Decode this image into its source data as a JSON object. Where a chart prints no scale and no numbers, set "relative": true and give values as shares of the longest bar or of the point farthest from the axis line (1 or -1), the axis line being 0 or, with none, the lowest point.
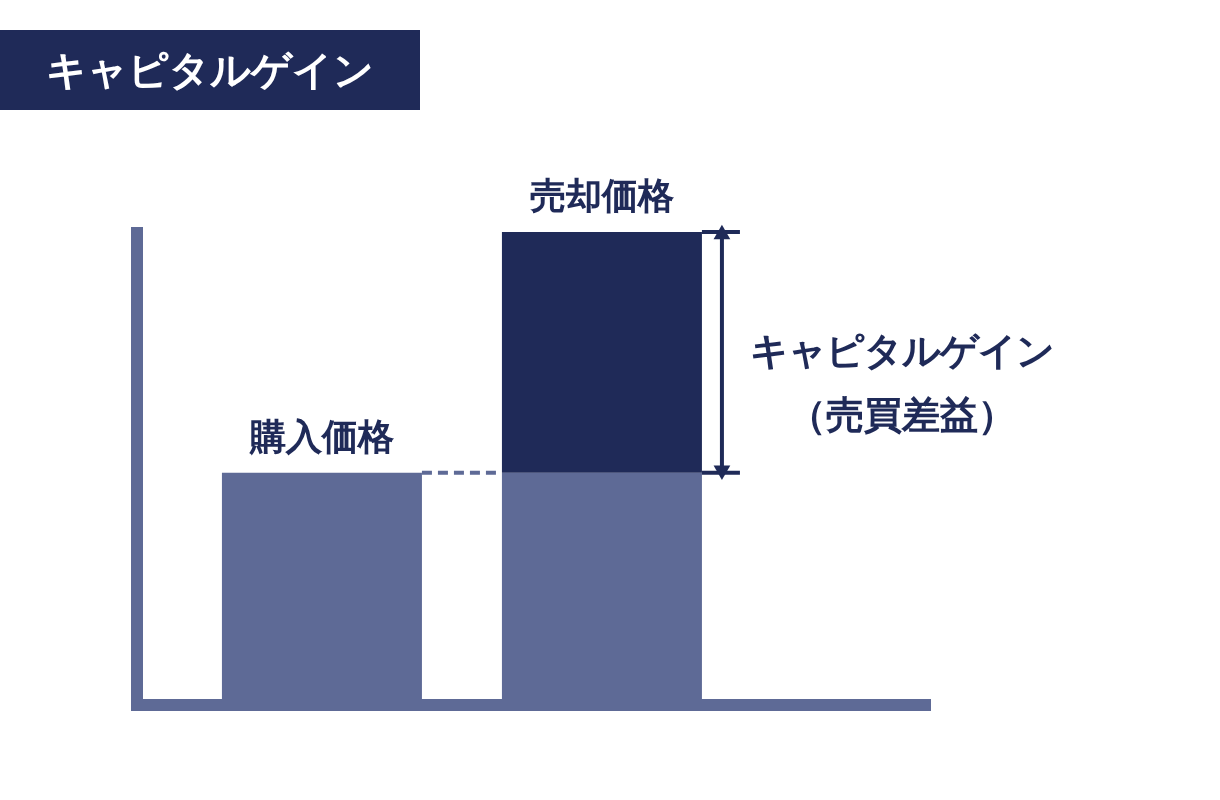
{
  "chart_data": {
    "type": "bar",
    "title": "キャピタルゲイン",
    "categories": [
      "購入価格",
      "売却価格"
    ],
    "stacked": true,
    "relative": true,
    "series": [
      {
        "color": "#5e6a96",
        "values": [
          0.49,
          0.49
        ]
      },
      {
        "name": "キャピタルゲイン（売買差益）",
        "color": "#1f2a58",
        "values": [
          null,
          0.51
        ]
      }
    ],
    "ref_lines": [
      {
        "axis": "y",
        "value": 0.49,
        "color": "#5e6a96",
        "line_style": "dashed"
      }
    ]
  }
}
